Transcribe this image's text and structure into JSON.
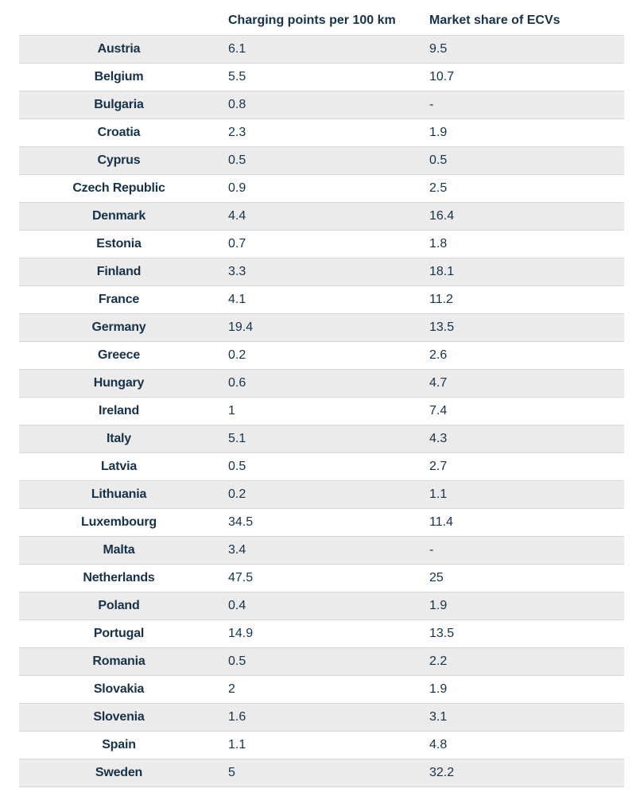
{
  "table": {
    "headers": {
      "country": "",
      "charging": "Charging points per 100 km",
      "market": "Market share of ECVs"
    },
    "rows": [
      {
        "country": "Austria",
        "charging": "6.1",
        "market": "9.5"
      },
      {
        "country": "Belgium",
        "charging": "5.5",
        "market": "10.7"
      },
      {
        "country": "Bulgaria",
        "charging": "0.8",
        "market": "-"
      },
      {
        "country": "Croatia",
        "charging": "2.3",
        "market": "1.9"
      },
      {
        "country": "Cyprus",
        "charging": "0.5",
        "market": "0.5"
      },
      {
        "country": "Czech Republic",
        "charging": "0.9",
        "market": "2.5"
      },
      {
        "country": "Denmark",
        "charging": "4.4",
        "market": "16.4"
      },
      {
        "country": "Estonia",
        "charging": "0.7",
        "market": "1.8"
      },
      {
        "country": "Finland",
        "charging": "3.3",
        "market": "18.1"
      },
      {
        "country": "France",
        "charging": "4.1",
        "market": "11.2"
      },
      {
        "country": "Germany",
        "charging": "19.4",
        "market": "13.5"
      },
      {
        "country": "Greece",
        "charging": "0.2",
        "market": "2.6"
      },
      {
        "country": "Hungary",
        "charging": "0.6",
        "market": "4.7"
      },
      {
        "country": "Ireland",
        "charging": "1",
        "market": "7.4"
      },
      {
        "country": "Italy",
        "charging": "5.1",
        "market": "4.3"
      },
      {
        "country": "Latvia",
        "charging": "0.5",
        "market": "2.7"
      },
      {
        "country": "Lithuania",
        "charging": "0.2",
        "market": "1.1"
      },
      {
        "country": "Luxembourg",
        "charging": "34.5",
        "market": "11.4"
      },
      {
        "country": "Malta",
        "charging": "3.4",
        "market": "-"
      },
      {
        "country": "Netherlands",
        "charging": "47.5",
        "market": "25"
      },
      {
        "country": "Poland",
        "charging": "0.4",
        "market": "1.9"
      },
      {
        "country": "Portugal",
        "charging": "14.9",
        "market": "13.5"
      },
      {
        "country": "Romania",
        "charging": "0.5",
        "market": "2.2"
      },
      {
        "country": "Slovakia",
        "charging": "2",
        "market": "1.9"
      },
      {
        "country": "Slovenia",
        "charging": "1.6",
        "market": "3.1"
      },
      {
        "country": "Spain",
        "charging": "1.1",
        "market": "4.8"
      },
      {
        "country": "Sweden",
        "charging": "5",
        "market": "32.2"
      }
    ]
  }
}
